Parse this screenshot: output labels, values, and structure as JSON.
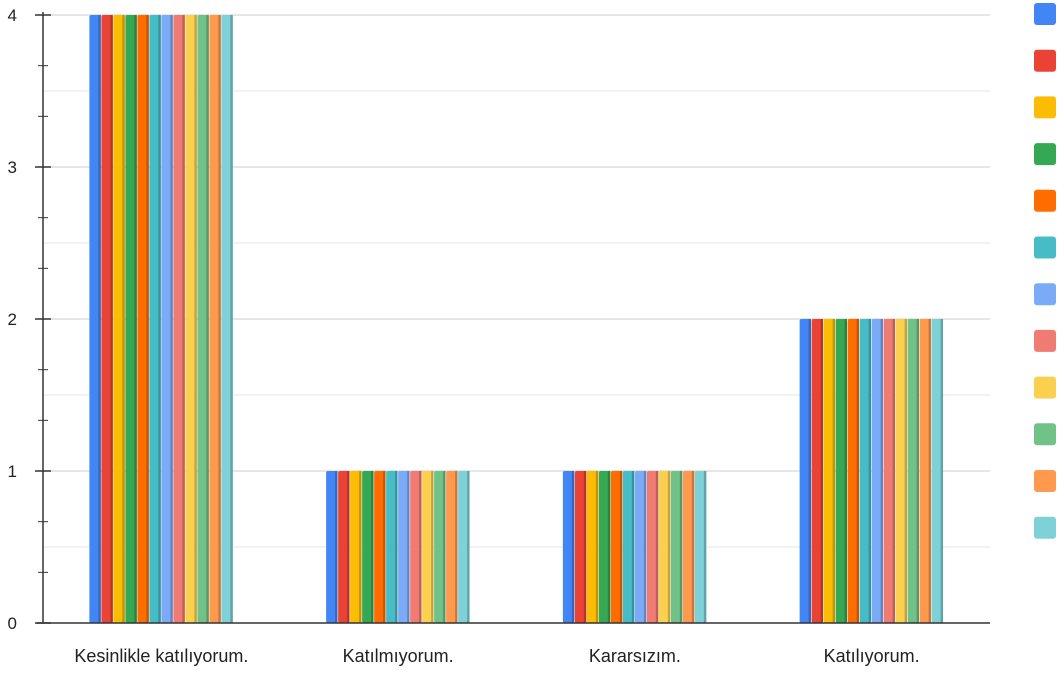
{
  "chart_data": {
    "type": "bar",
    "title": "",
    "xlabel": "",
    "ylabel": "",
    "categories": [
      "Kesinlikle katılıyorum.",
      "Katılmıyorum.",
      "Kararsızım.",
      "Katılıyorum."
    ],
    "ylim": [
      0,
      4
    ],
    "yticks": [
      "0",
      "1",
      "2",
      "3",
      "4"
    ],
    "grid": true,
    "legend_position": "right",
    "series": [
      {
        "values": [
          4,
          1,
          1,
          2
        ],
        "color": "#4285F4"
      },
      {
        "values": [
          4,
          1,
          1,
          2
        ],
        "color": "#EA4335"
      },
      {
        "values": [
          4,
          1,
          1,
          2
        ],
        "color": "#FBBC04"
      },
      {
        "values": [
          4,
          1,
          1,
          2
        ],
        "color": "#34A853"
      },
      {
        "values": [
          4,
          1,
          1,
          2
        ],
        "color": "#FF6D01"
      },
      {
        "values": [
          4,
          1,
          1,
          2
        ],
        "color": "#46BDC6"
      },
      {
        "values": [
          4,
          1,
          1,
          2
        ],
        "color": "#7BAAF7"
      },
      {
        "values": [
          4,
          1,
          1,
          2
        ],
        "color": "#F07B72"
      },
      {
        "values": [
          4,
          1,
          1,
          2
        ],
        "color": "#FCD04F"
      },
      {
        "values": [
          4,
          1,
          1,
          2
        ],
        "color": "#71C287"
      },
      {
        "values": [
          4,
          1,
          1,
          2
        ],
        "color": "#FF994D"
      },
      {
        "values": [
          4,
          1,
          1,
          2
        ],
        "color": "#7ED1D7"
      }
    ]
  }
}
